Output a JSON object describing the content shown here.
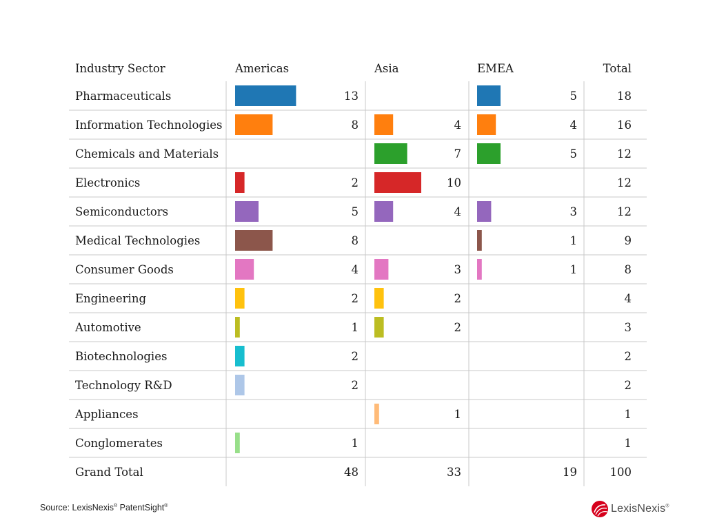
{
  "chart_data": {
    "type": "table",
    "columns": [
      "Industry Sector",
      "Americas",
      "Asia",
      "EMEA",
      "Total"
    ],
    "rows": [
      {
        "sector": "Pharmaceuticals",
        "americas": 13,
        "asia": null,
        "emea": 5,
        "total": 18,
        "color": "#1f77b4"
      },
      {
        "sector": "Information Technologies",
        "americas": 8,
        "asia": 4,
        "emea": 4,
        "total": 16,
        "color": "#ff7f0e"
      },
      {
        "sector": "Chemicals and Materials",
        "americas": null,
        "asia": 7,
        "emea": 5,
        "total": 12,
        "color": "#2ca02c"
      },
      {
        "sector": "Electronics",
        "americas": 2,
        "asia": 10,
        "emea": null,
        "total": 12,
        "color": "#d62728"
      },
      {
        "sector": "Semiconductors",
        "americas": 5,
        "asia": 4,
        "emea": 3,
        "total": 12,
        "color": "#9467bd"
      },
      {
        "sector": "Medical Technologies",
        "americas": 8,
        "asia": null,
        "emea": 1,
        "total": 9,
        "color": "#8c564b"
      },
      {
        "sector": "Consumer Goods",
        "americas": 4,
        "asia": 3,
        "emea": 1,
        "total": 8,
        "color": "#e377c2"
      },
      {
        "sector": "Engineering",
        "americas": 2,
        "asia": 2,
        "emea": null,
        "total": 4,
        "color": "#ffc20e"
      },
      {
        "sector": "Automotive",
        "americas": 1,
        "asia": 2,
        "emea": null,
        "total": 3,
        "color": "#bcbd22"
      },
      {
        "sector": "Biotechnologies",
        "americas": 2,
        "asia": null,
        "emea": null,
        "total": 2,
        "color": "#17becf"
      },
      {
        "sector": "Technology R&D",
        "americas": 2,
        "asia": null,
        "emea": null,
        "total": 2,
        "color": "#aec7e8"
      },
      {
        "sector": "Appliances",
        "americas": null,
        "asia": 1,
        "emea": null,
        "total": 1,
        "color": "#ffbb78"
      },
      {
        "sector": "Conglomerates",
        "americas": 1,
        "asia": null,
        "emea": null,
        "total": 1,
        "color": "#98df8a"
      }
    ],
    "grand_total": {
      "label": "Grand Total",
      "americas": 48,
      "asia": 33,
      "emea": 19,
      "total": 100
    }
  },
  "footer": {
    "source_prefix": "Source: LexisNexis",
    "reg1": "®",
    "source_mid": " PatentSight",
    "reg2": "®",
    "brand": "LexisNexis",
    "brand_reg": "®",
    "brand_color": "#d6001c"
  }
}
